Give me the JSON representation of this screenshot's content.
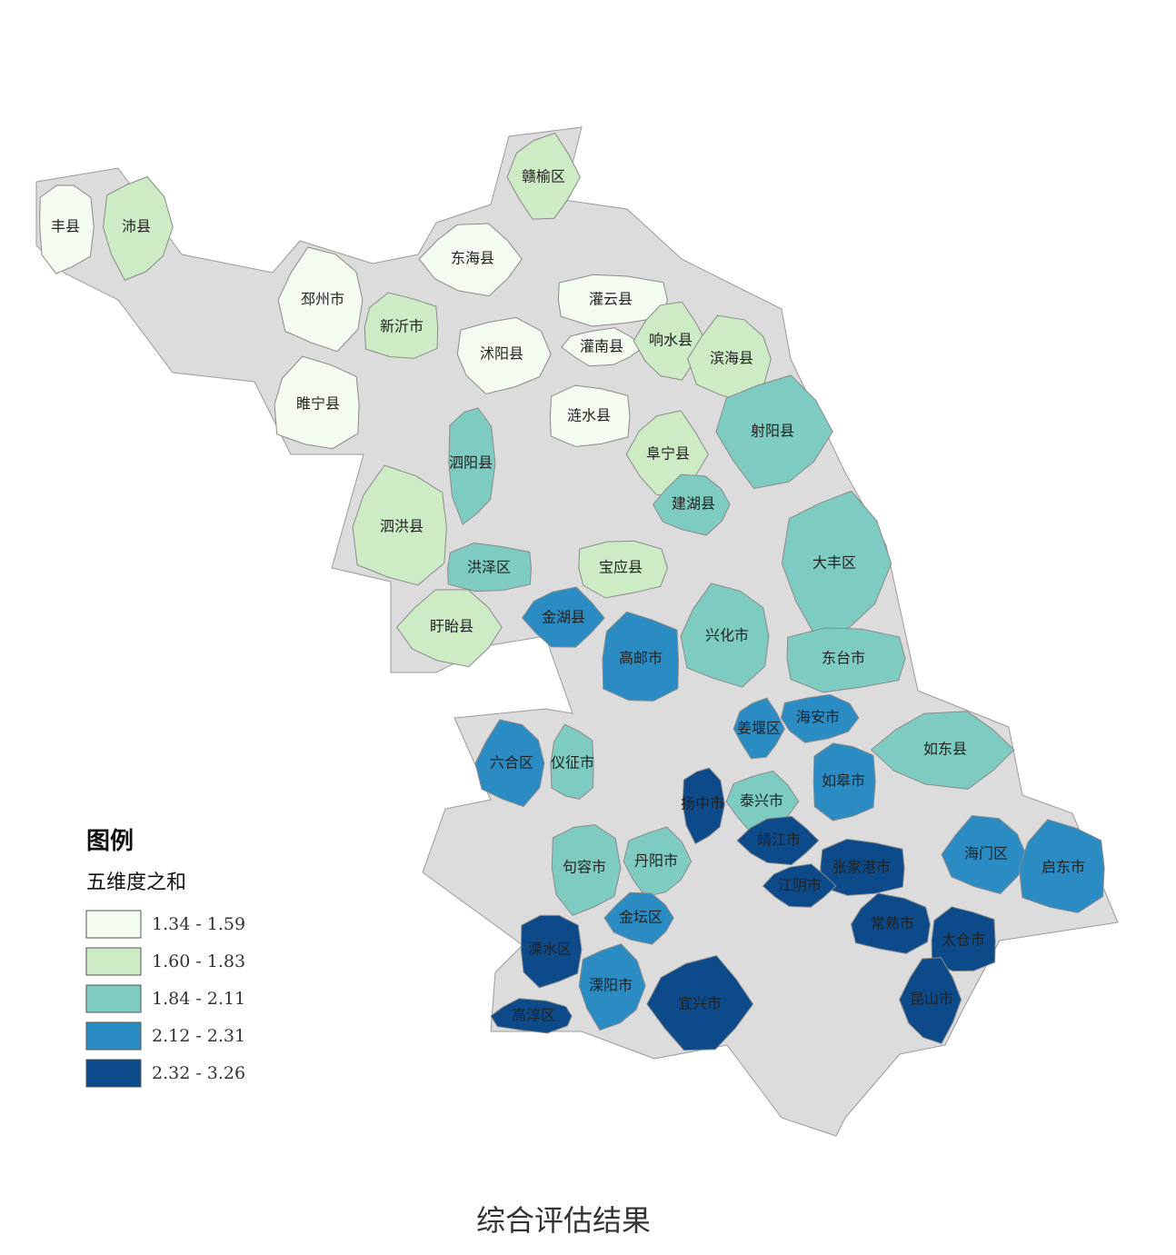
{
  "map": {
    "caption": "综合评估结果",
    "legend": {
      "title": "图例",
      "subtitle": "五维度之和",
      "classes": [
        {
          "label": "1.34 - 1.59",
          "color": "#f4fbf0"
        },
        {
          "label": "1.60 - 1.83",
          "color": "#cdebc5"
        },
        {
          "label": "1.84 - 2.11",
          "color": "#7ecbc1"
        },
        {
          "label": "2.12 - 2.31",
          "color": "#2b8cc4"
        },
        {
          "label": "2.32 - 3.26",
          "color": "#0d4a8a"
        }
      ]
    },
    "regions": [
      {
        "name": "丰县",
        "color": "#f4fbf0"
      },
      {
        "name": "沛县",
        "color": "#cdebc5"
      },
      {
        "name": "赣榆区",
        "color": "#cdebc5"
      },
      {
        "name": "东海县",
        "color": "#f4fbf0"
      },
      {
        "name": "邳州市",
        "color": "#f4fbf0"
      },
      {
        "name": "新沂市",
        "color": "#cdebc5"
      },
      {
        "name": "灌云县",
        "color": "#f4fbf0"
      },
      {
        "name": "沭阳县",
        "color": "#f4fbf0"
      },
      {
        "name": "灌南县",
        "color": "#f4fbf0"
      },
      {
        "name": "响水县",
        "color": "#cdebc5"
      },
      {
        "name": "滨海县",
        "color": "#cdebc5"
      },
      {
        "name": "睢宁县",
        "color": "#f4fbf0"
      },
      {
        "name": "涟水县",
        "color": "#f4fbf0"
      },
      {
        "name": "泗阳县",
        "color": "#7ecbc1"
      },
      {
        "name": "射阳县",
        "color": "#7ecbc1"
      },
      {
        "name": "阜宁县",
        "color": "#cdebc5"
      },
      {
        "name": "建湖县",
        "color": "#7ecbc1"
      },
      {
        "name": "泗洪县",
        "color": "#cdebc5"
      },
      {
        "name": "洪泽区",
        "color": "#7ecbc1"
      },
      {
        "name": "宝应县",
        "color": "#cdebc5"
      },
      {
        "name": "大丰区",
        "color": "#7ecbc1"
      },
      {
        "name": "金湖县",
        "color": "#2b8cc4"
      },
      {
        "name": "盱眙县",
        "color": "#cdebc5"
      },
      {
        "name": "兴化市",
        "color": "#7ecbc1"
      },
      {
        "name": "高邮市",
        "color": "#2b8cc4"
      },
      {
        "name": "东台市",
        "color": "#7ecbc1"
      },
      {
        "name": "海安市",
        "color": "#2b8cc4"
      },
      {
        "name": "姜堰区",
        "color": "#2b8cc4"
      },
      {
        "name": "如东县",
        "color": "#7ecbc1"
      },
      {
        "name": "六合区",
        "color": "#2b8cc4"
      },
      {
        "name": "仪征市",
        "color": "#7ecbc1"
      },
      {
        "name": "如皋市",
        "color": "#2b8cc4"
      },
      {
        "name": "扬中市",
        "color": "#0d4a8a"
      },
      {
        "name": "泰兴市",
        "color": "#7ecbc1"
      },
      {
        "name": "靖江市",
        "color": "#0d4a8a"
      },
      {
        "name": "海门区",
        "color": "#2b8cc4"
      },
      {
        "name": "启东市",
        "color": "#2b8cc4"
      },
      {
        "name": "张家港市",
        "color": "#0d4a8a"
      },
      {
        "name": "句容市",
        "color": "#7ecbc1"
      },
      {
        "name": "丹阳市",
        "color": "#7ecbc1"
      },
      {
        "name": "江阴市",
        "color": "#0d4a8a"
      },
      {
        "name": "金坛区",
        "color": "#2b8cc4"
      },
      {
        "name": "常熟市",
        "color": "#0d4a8a"
      },
      {
        "name": "太仓市",
        "color": "#0d4a8a"
      },
      {
        "name": "溧水区",
        "color": "#0d4a8a"
      },
      {
        "name": "溧阳市",
        "color": "#2b8cc4"
      },
      {
        "name": "宜兴市",
        "color": "#0d4a8a"
      },
      {
        "name": "昆山市",
        "color": "#0d4a8a"
      },
      {
        "name": "高淳区",
        "color": "#0d4a8a"
      }
    ]
  }
}
